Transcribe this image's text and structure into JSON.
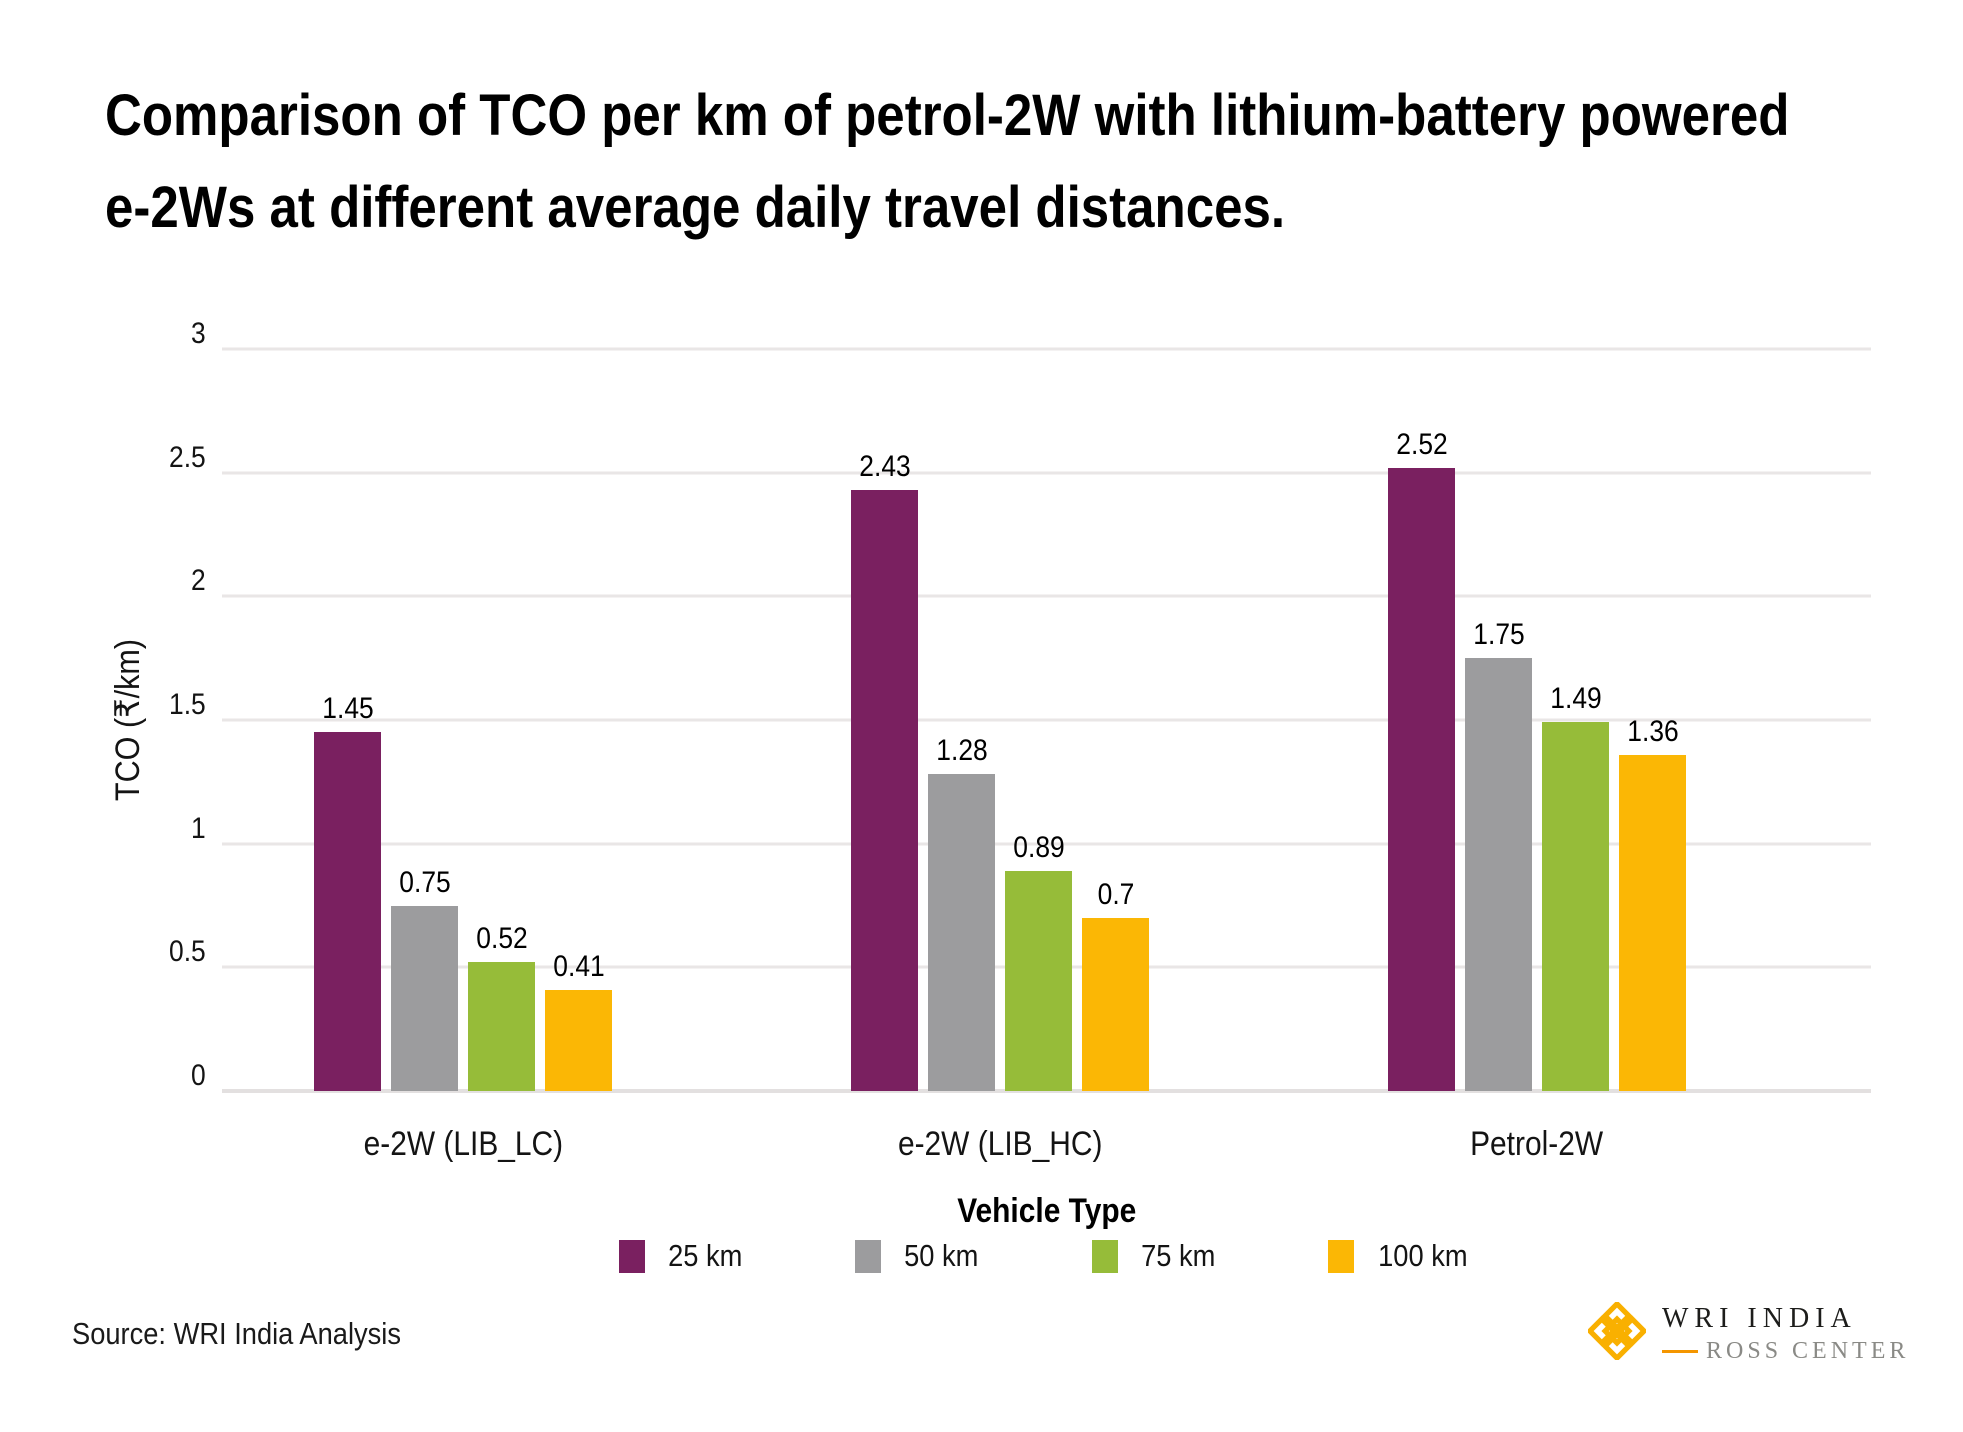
{
  "title": {
    "lines": [
      "Comparison of TCO per km of petrol-2W with lithium-battery powered",
      "e-2Ws at different average daily travel distances."
    ]
  },
  "source_note": "Source: WRI India Analysis",
  "branding": {
    "org": "WRI INDIA",
    "center": "ROSS CENTER",
    "mark_icon": "wri-weave-logo",
    "mark_color": "#f9b000",
    "org_color": "#1d1d1b",
    "center_color": "#8a8a86",
    "dash_color": "#f49600"
  },
  "chart_data": {
    "type": "bar",
    "title": "Comparison of TCO per km of petrol-2W with lithium-battery powered e-2Ws at different average daily travel distances.",
    "categories": [
      "e-2W (LIB_LC)",
      "e-2W (LIB_HC)",
      "Petrol-2W"
    ],
    "series": [
      {
        "name": "25 km",
        "color": "#7a2060",
        "values": [
          1.45,
          2.43,
          2.52
        ]
      },
      {
        "name": "50 km",
        "color": "#9c9c9e",
        "values": [
          0.75,
          1.28,
          1.75
        ]
      },
      {
        "name": "75 km",
        "color": "#96bc39",
        "values": [
          0.52,
          0.89,
          1.49
        ]
      },
      {
        "name": "100 km",
        "color": "#fbb705",
        "values": [
          0.41,
          0.7,
          1.36
        ]
      }
    ],
    "value_labels": [
      "1.45",
      "0.75",
      "0.52",
      "0.41",
      "2.43",
      "1.28",
      "0.89",
      "0.7",
      "2.52",
      "1.75",
      "1.49",
      "1.36"
    ],
    "xlabel": "Vehicle Type",
    "ylabel": "TCO (₹/km)",
    "ylim": [
      0,
      3
    ],
    "y_ticks": [
      0,
      0.5,
      1,
      1.5,
      2,
      2.5,
      3
    ],
    "grid": true,
    "legend_position": "bottom",
    "gridline_color": "#e9e6e6",
    "axis_line_color": "#e3e0e0"
  }
}
